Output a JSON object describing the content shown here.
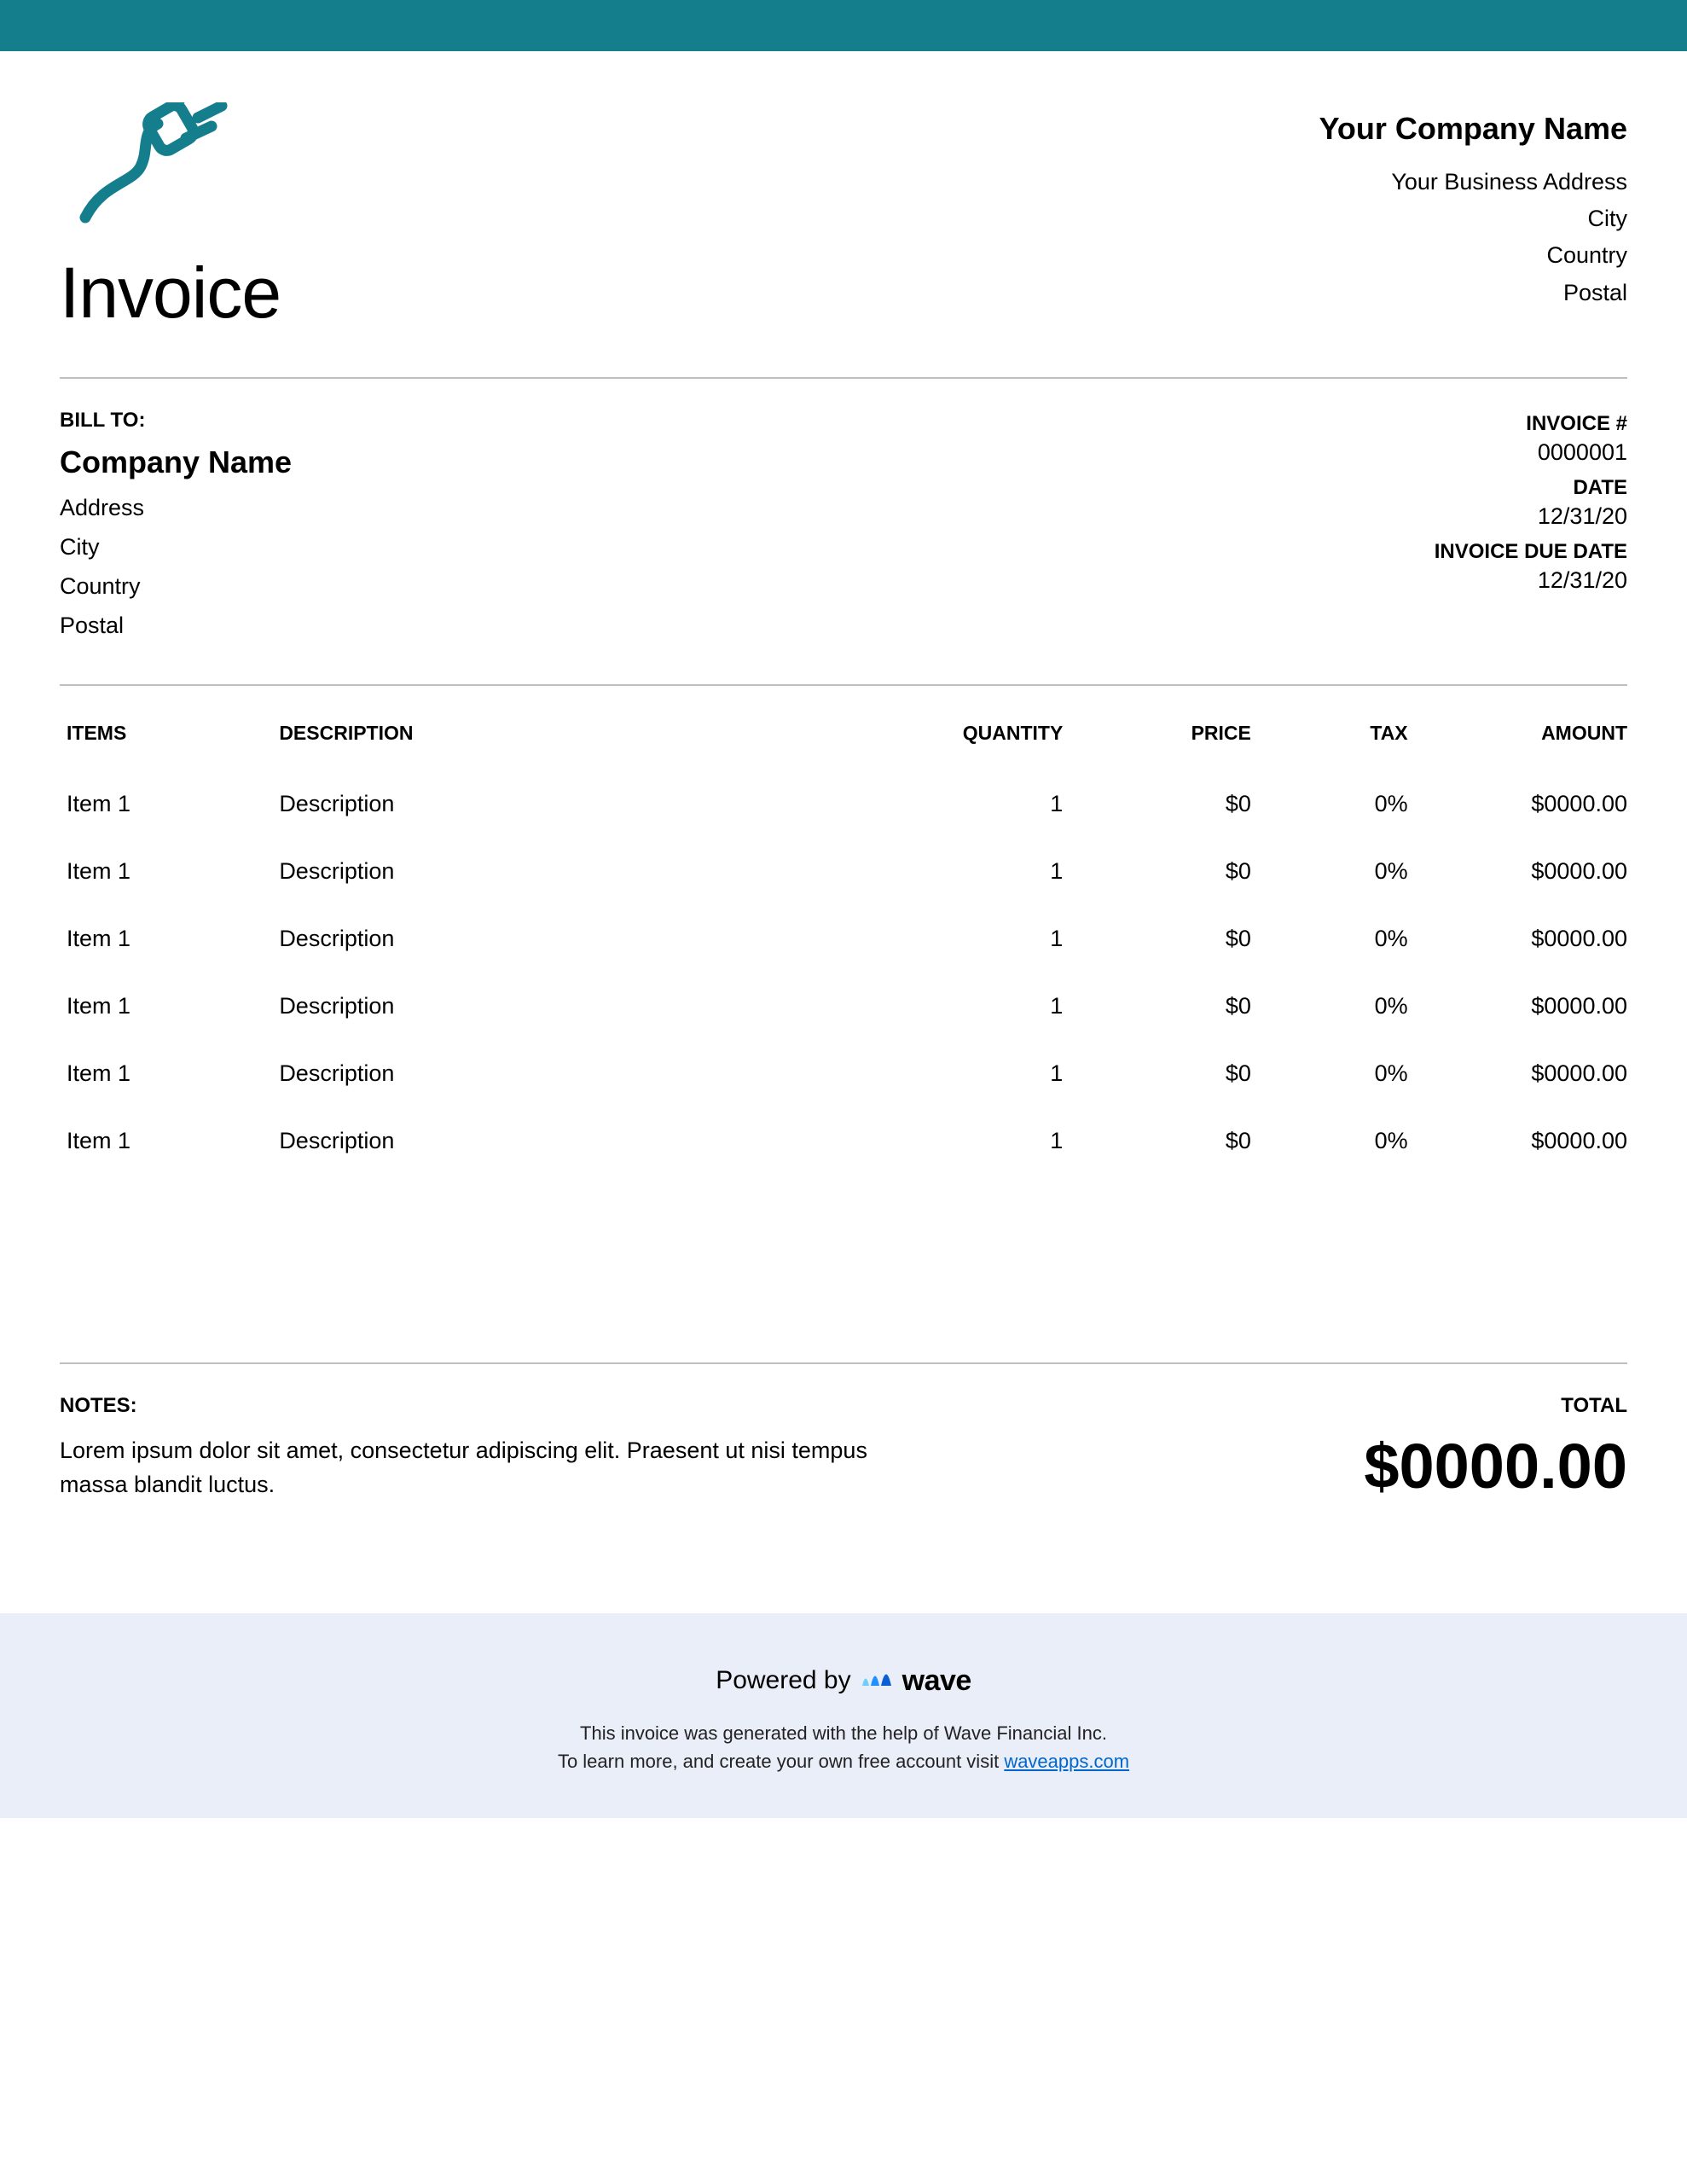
{
  "colors": {
    "accent": "#157e8c",
    "topbar": "#157e8c",
    "separator": "#bfbfbf",
    "footer_bg": "#e9eef9",
    "wave_blue": "#1e90ff",
    "link": "#0066cc",
    "text": "#000000",
    "background": "#ffffff"
  },
  "header": {
    "doc_title": "Invoice",
    "company_name": "Your Company Name",
    "address": "Your Business Address",
    "city": "City",
    "country": "Country",
    "postal": "Postal"
  },
  "bill_to": {
    "label": "BILL TO:",
    "company": "Company Name",
    "address": "Address",
    "city": "City",
    "country": "Country",
    "postal": "Postal"
  },
  "meta": {
    "invoice_num_label": "INVOICE #",
    "invoice_num": "0000001",
    "date_label": "DATE",
    "date": "12/31/20",
    "due_label": "INVOICE DUE DATE",
    "due": "12/31/20"
  },
  "table": {
    "columns": {
      "items": "ITEMS",
      "description": "DESCRIPTION",
      "quantity": "QUANTITY",
      "price": "PRICE",
      "tax": "TAX",
      "amount": "AMOUNT"
    },
    "rows": [
      {
        "item": "Item 1",
        "desc": "Description",
        "qty": "1",
        "price": "$0",
        "tax": "0%",
        "amount": "$0000.00"
      },
      {
        "item": "Item 1",
        "desc": "Description",
        "qty": "1",
        "price": "$0",
        "tax": "0%",
        "amount": "$0000.00"
      },
      {
        "item": "Item 1",
        "desc": "Description",
        "qty": "1",
        "price": "$0",
        "tax": "0%",
        "amount": "$0000.00"
      },
      {
        "item": "Item 1",
        "desc": "Description",
        "qty": "1",
        "price": "$0",
        "tax": "0%",
        "amount": "$0000.00"
      },
      {
        "item": "Item 1",
        "desc": "Description",
        "qty": "1",
        "price": "$0",
        "tax": "0%",
        "amount": "$0000.00"
      },
      {
        "item": "Item 1",
        "desc": "Description",
        "qty": "1",
        "price": "$0",
        "tax": "0%",
        "amount": "$0000.00"
      }
    ]
  },
  "notes": {
    "label": "NOTES:",
    "text": "Lorem ipsum dolor sit amet, consectetur adipiscing elit. Praesent ut nisi tempus massa blandit luctus."
  },
  "total": {
    "label": "TOTAL",
    "amount": "$0000.00"
  },
  "footer": {
    "powered_by": "Powered by",
    "brand": "wave",
    "line1": "This invoice was generated with the help of Wave Financial Inc.",
    "line2_prefix": "To learn more, and create your own free account visit ",
    "link_text": "waveapps.com"
  }
}
